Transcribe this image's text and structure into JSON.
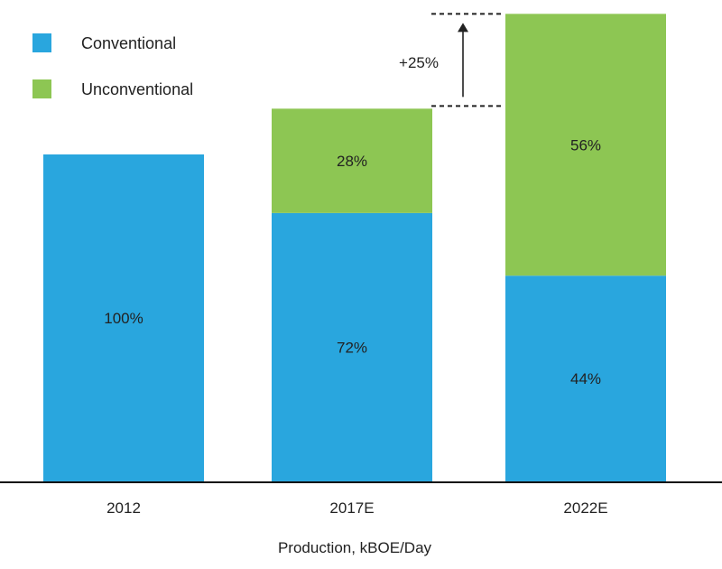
{
  "chart_data": {
    "type": "bar",
    "stacked": true,
    "title": "",
    "xlabel": "Production, kBOE/Day",
    "ylabel": "",
    "categories": [
      "2012",
      "2017E",
      "2022E"
    ],
    "total_index": [
      100,
      114,
      143
    ],
    "series": [
      {
        "name": "Conventional",
        "color": "#29a6de",
        "values": [
          100,
          72,
          44
        ],
        "labels": [
          "100%",
          "72%",
          "44%"
        ]
      },
      {
        "name": "Unconventional",
        "color": "#8dc653",
        "values": [
          0,
          28,
          56
        ],
        "labels": [
          "",
          "28%",
          "56%"
        ]
      }
    ],
    "annotation": {
      "text": "+25%",
      "from": "2017E",
      "to": "2022E"
    },
    "legend": "top-left",
    "grid": false
  }
}
